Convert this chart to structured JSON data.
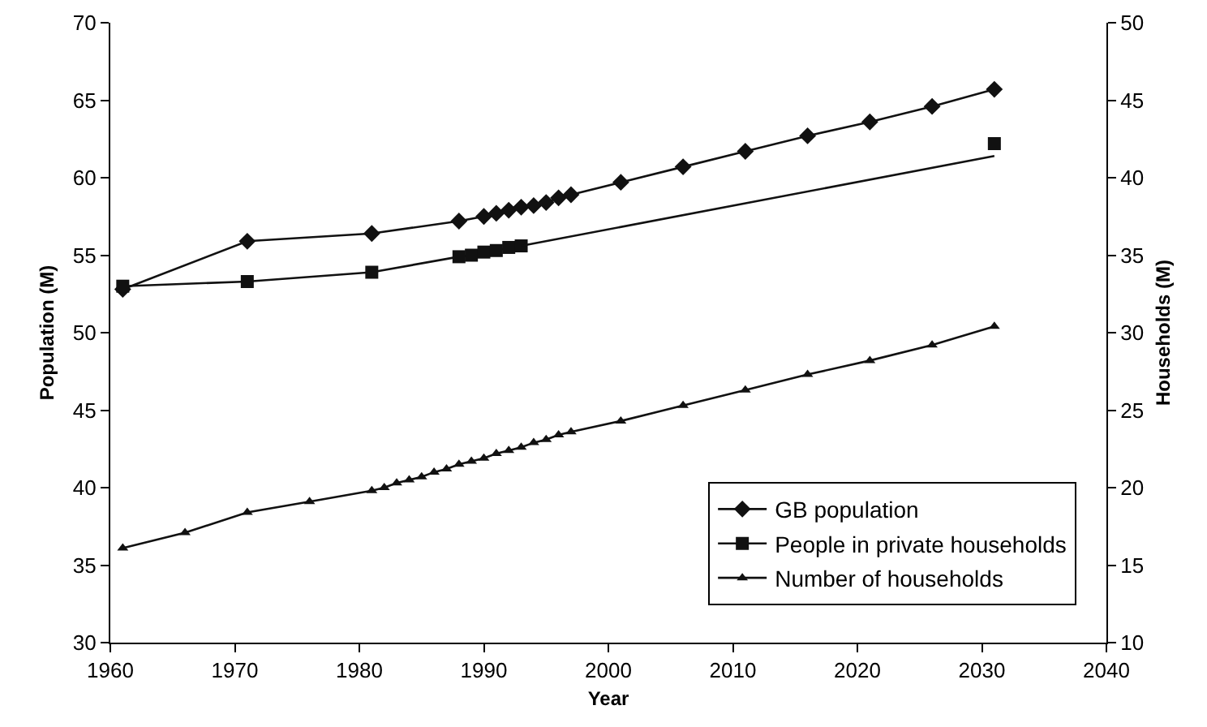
{
  "chart_data": {
    "type": "line",
    "xlabel": "Year",
    "ylabel": "Population (M)",
    "y2label": "Households (M)",
    "xlim": [
      1960,
      2040
    ],
    "xticks": [
      1960,
      1970,
      1980,
      1990,
      2000,
      2010,
      2020,
      2030,
      2040
    ],
    "ylim": [
      30,
      70
    ],
    "yticks": [
      30,
      35,
      40,
      45,
      50,
      55,
      60,
      65,
      70
    ],
    "y2lim": [
      10,
      50
    ],
    "y2ticks": [
      10,
      15,
      20,
      25,
      30,
      35,
      40,
      45,
      50
    ],
    "grid": false,
    "legend": "bottom right",
    "line_style": "solid",
    "series": [
      {
        "name": "GB population",
        "color": "#111111",
        "marker": "diamond",
        "x": [
          1961,
          1971,
          1981,
          1988,
          1990,
          1991,
          1992,
          1993,
          1994,
          1995,
          1996,
          1997,
          2001,
          2006,
          2011,
          2016,
          2021,
          2026,
          2031
        ],
        "values": [
          52.8,
          55.9,
          56.4,
          57.2,
          57.5,
          57.7,
          57.9,
          58.1,
          58.2,
          58.4,
          58.7,
          58.9,
          59.7,
          60.7,
          61.7,
          62.7,
          63.6,
          64.6,
          65.7
        ]
      },
      {
        "name": "People in private households",
        "color": "#111111",
        "marker": "square",
        "x": [
          1961,
          1971,
          1981,
          1988,
          1989,
          1990,
          1991,
          1992,
          1993
        ],
        "values": [
          53.0,
          53.3,
          53.9,
          54.9,
          55.0,
          55.2,
          55.3,
          55.5,
          55.6
        ]
      },
      {
        "color": "#111111",
        "marker": "none",
        "x": [
          1993,
          2031
        ],
        "values": [
          55.6,
          61.4
        ]
      },
      {
        "type": "scatter",
        "color": "#111111",
        "marker": "square",
        "x": [
          2031
        ],
        "values": [
          62.2
        ]
      },
      {
        "name": "Number of households",
        "color": "#111111",
        "marker": "triangle",
        "axis": "y2",
        "x": [
          1961,
          1966,
          1971,
          1976,
          1981,
          1982,
          1983,
          1984,
          1985,
          1986,
          1987,
          1988,
          1989,
          1990,
          1991,
          1992,
          1993,
          1994,
          1995,
          1996,
          1997,
          2001,
          2006,
          2011,
          2016,
          2021,
          2026,
          2031
        ],
        "values": [
          16.1,
          17.1,
          18.4,
          19.1,
          19.8,
          20.0,
          20.3,
          20.5,
          20.7,
          21.0,
          21.2,
          21.5,
          21.7,
          21.9,
          22.2,
          22.4,
          22.6,
          22.9,
          23.1,
          23.4,
          23.6,
          24.3,
          25.3,
          26.3,
          27.3,
          28.2,
          29.2,
          30.4
        ]
      }
    ]
  }
}
